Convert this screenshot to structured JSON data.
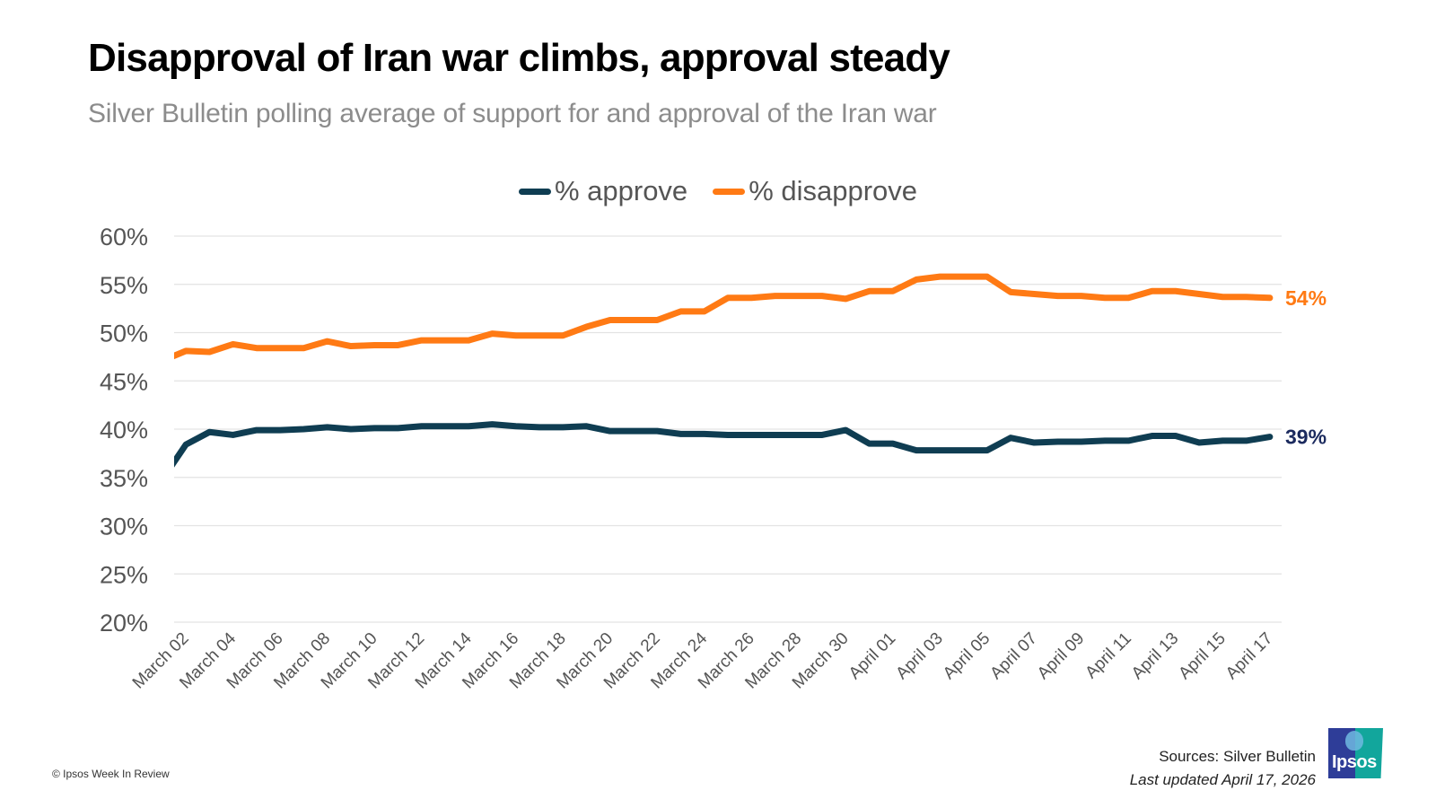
{
  "header": {
    "title": "Disapproval of Iran war climbs, approval steady",
    "subtitle": "Silver Bulletin polling average of support for and approval of the Iran war"
  },
  "legend": [
    {
      "label": "% approve",
      "color": "#0f3d52"
    },
    {
      "label": "% disapprove",
      "color": "#ff7a14"
    }
  ],
  "end_labels": {
    "approve": {
      "text": "39%",
      "color": "#1b2a5e"
    },
    "disapprove": {
      "text": "54%",
      "color": "#ff7a14"
    }
  },
  "footer": {
    "sources": "Sources: Silver Bulletin",
    "updated": "Last updated April 17, 2026",
    "copyright": "© Ipsos Week In Review",
    "logo_text": "Ipsos"
  },
  "chart_data": {
    "type": "line",
    "title": "Disapproval of Iran war climbs, approval steady",
    "subtitle": "Silver Bulletin polling average of support for and approval of the Iran war",
    "xlabel": "",
    "ylabel": "",
    "ylim": [
      20,
      60
    ],
    "yticks": [
      20,
      25,
      30,
      35,
      40,
      45,
      50,
      55,
      60
    ],
    "ytick_labels": [
      "20%",
      "25%",
      "30%",
      "35%",
      "40%",
      "45%",
      "50%",
      "55%",
      "60%"
    ],
    "grid": true,
    "legend_position": "top-center",
    "x": [
      "March 02",
      "March 03",
      "March 04",
      "March 05",
      "March 06",
      "March 07",
      "March 08",
      "March 09",
      "March 10",
      "March 11",
      "March 12",
      "March 13",
      "March 14",
      "March 15",
      "March 16",
      "March 17",
      "March 18",
      "March 19",
      "March 20",
      "March 21",
      "March 22",
      "March 23",
      "March 24",
      "March 25",
      "March 26",
      "March 27",
      "March 28",
      "March 29",
      "March 30",
      "March 31",
      "April 01",
      "April 02",
      "April 03",
      "April 04",
      "April 05",
      "April 06",
      "April 07",
      "April 08",
      "April 09",
      "April 10",
      "April 11",
      "April 12",
      "April 13",
      "April 14",
      "April 15",
      "April 16",
      "April 17"
    ],
    "xtick_labels": [
      "March 02",
      "March 04",
      "March 06",
      "March 08",
      "March 10",
      "March 12",
      "March 14",
      "March 16",
      "March 18",
      "March 20",
      "March 22",
      "March 24",
      "March 26",
      "March 28",
      "March 30",
      "April 01",
      "April 03",
      "April 05",
      "April 07",
      "April 09",
      "April 11",
      "April 13",
      "April 15",
      "April 17"
    ],
    "series": [
      {
        "name": "% approve",
        "color": "#0f3d52",
        "values": [
          38.4,
          39.7,
          39.4,
          39.9,
          39.9,
          40.0,
          40.2,
          40.0,
          40.1,
          40.1,
          40.3,
          40.3,
          40.3,
          40.5,
          40.3,
          40.2,
          40.2,
          40.3,
          39.8,
          39.8,
          39.8,
          39.5,
          39.5,
          39.4,
          39.4,
          39.4,
          39.4,
          39.4,
          39.9,
          38.5,
          38.5,
          37.8,
          37.8,
          37.8,
          37.8,
          39.1,
          38.6,
          38.7,
          38.7,
          38.8,
          38.8,
          39.3,
          39.3,
          38.6,
          38.8,
          38.8,
          39.2
        ],
        "end_label": "39%"
      },
      {
        "name": "% disapprove",
        "color": "#ff7a14",
        "values": [
          48.1,
          48.0,
          48.8,
          48.4,
          48.4,
          48.4,
          49.1,
          48.6,
          48.7,
          48.7,
          49.2,
          49.2,
          49.2,
          49.9,
          49.7,
          49.7,
          49.7,
          50.6,
          51.3,
          51.3,
          51.3,
          52.2,
          52.2,
          53.6,
          53.6,
          53.8,
          53.8,
          53.8,
          53.5,
          54.3,
          54.3,
          55.5,
          55.8,
          55.8,
          55.8,
          54.2,
          54.0,
          53.8,
          53.8,
          53.6,
          53.6,
          54.3,
          54.3,
          54.0,
          53.7,
          53.7,
          53.6
        ],
        "end_label": "54%"
      }
    ]
  }
}
